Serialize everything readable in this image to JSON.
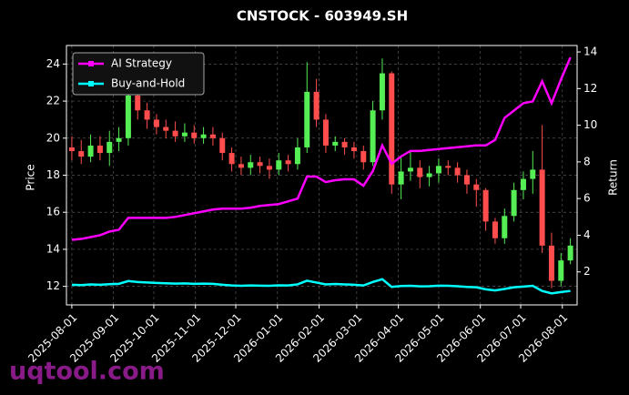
{
  "chart_data": {
    "type": "candlestick_returns",
    "title": "CNSTOCK - 603949.SH",
    "ylabel": "Price",
    "y2label": "Return",
    "watermark": "uqtool.com",
    "xlim": [
      "2025-07-28",
      "2026-08-12"
    ],
    "xticks": [
      "2025-08-01",
      "2025-09-01",
      "2025-10-01",
      "2025-11-01",
      "2025-12-01",
      "2026-01-01",
      "2026-02-01",
      "2026-03-01",
      "2026-04-01",
      "2026-05-01",
      "2026-06-01",
      "2026-07-01",
      "2026-08-01"
    ],
    "ylim": [
      11,
      25
    ],
    "yticks": [
      12,
      14,
      16,
      18,
      20,
      22,
      24
    ],
    "y2lim": [
      0.2,
      14.35
    ],
    "y2ticks": [
      2,
      4,
      6,
      8,
      10,
      12,
      14
    ],
    "grid": true,
    "legend": "upper left",
    "up_color": "#55ee55",
    "down_color": "#ff4d4d",
    "x": [
      "2025-08-01",
      "2025-08-08",
      "2025-08-15",
      "2025-08-22",
      "2025-08-29",
      "2025-09-05",
      "2025-09-12",
      "2025-09-19",
      "2025-09-26",
      "2025-10-03",
      "2025-10-10",
      "2025-10-17",
      "2025-10-24",
      "2025-10-31",
      "2025-11-07",
      "2025-11-14",
      "2025-11-21",
      "2025-11-28",
      "2025-12-05",
      "2025-12-12",
      "2025-12-19",
      "2025-12-26",
      "2026-01-02",
      "2026-01-09",
      "2026-01-16",
      "2026-01-23",
      "2026-01-30",
      "2026-02-06",
      "2026-02-13",
      "2026-02-20",
      "2026-02-27",
      "2026-03-06",
      "2026-03-13",
      "2026-03-20",
      "2026-03-27",
      "2026-04-03",
      "2026-04-10",
      "2026-04-17",
      "2026-04-24",
      "2026-05-01",
      "2026-05-08",
      "2026-05-15",
      "2026-05-22",
      "2026-05-29",
      "2026-06-05",
      "2026-06-12",
      "2026-06-19",
      "2026-06-26",
      "2026-07-03",
      "2026-07-10",
      "2026-07-17",
      "2026-07-24",
      "2026-07-31",
      "2026-08-07"
    ],
    "open": [
      19.5,
      19.3,
      19.0,
      19.6,
      19.2,
      19.8,
      20.0,
      22.3,
      21.5,
      21.0,
      20.6,
      20.4,
      20.1,
      20.3,
      20.0,
      20.2,
      20.0,
      19.2,
      18.6,
      18.4,
      18.7,
      18.5,
      18.3,
      18.8,
      18.6,
      19.5,
      22.5,
      21.0,
      19.6,
      19.8,
      19.5,
      19.3,
      18.7,
      21.5,
      23.5,
      17.5,
      18.2,
      18.4,
      17.9,
      18.1,
      18.5,
      18.4,
      18.0,
      17.5,
      17.2,
      15.5,
      14.6,
      15.8,
      17.2,
      17.8,
      18.3,
      14.2,
      12.3,
      13.4
    ],
    "high": [
      20.1,
      19.9,
      20.2,
      20.1,
      20.4,
      20.6,
      23.0,
      22.8,
      21.9,
      21.3,
      21.0,
      20.9,
      20.8,
      20.7,
      20.6,
      20.6,
      20.3,
      19.5,
      19.0,
      19.1,
      19.0,
      18.9,
      19.2,
      19.1,
      20.0,
      24.1,
      23.2,
      21.3,
      20.1,
      20.0,
      19.8,
      19.6,
      22.0,
      24.3,
      23.6,
      19.0,
      19.3,
      18.8,
      18.5,
      18.9,
      18.8,
      18.7,
      18.3,
      17.8,
      17.3,
      15.7,
      16.2,
      17.6,
      18.2,
      19.3,
      20.7,
      14.9,
      13.8,
      14.6
    ],
    "low": [
      18.8,
      18.6,
      18.7,
      18.8,
      18.5,
      19.3,
      19.6,
      21.0,
      20.5,
      20.2,
      20.0,
      19.8,
      19.8,
      19.7,
      19.7,
      19.6,
      18.8,
      18.2,
      18.0,
      18.0,
      18.1,
      17.8,
      18.0,
      18.2,
      18.3,
      19.2,
      20.6,
      19.2,
      19.3,
      19.1,
      18.9,
      18.3,
      18.5,
      21.0,
      17.0,
      16.7,
      17.7,
      17.3,
      17.4,
      17.6,
      18.0,
      17.6,
      17.0,
      16.3,
      15.0,
      14.3,
      14.3,
      15.5,
      16.7,
      17.0,
      13.8,
      11.9,
      12.0,
      13.2
    ],
    "close": [
      19.3,
      19.0,
      19.6,
      19.2,
      19.8,
      20.0,
      22.3,
      21.5,
      21.0,
      20.6,
      20.4,
      20.1,
      20.3,
      20.0,
      20.2,
      20.0,
      19.2,
      18.6,
      18.4,
      18.7,
      18.5,
      18.3,
      18.8,
      18.6,
      19.5,
      22.5,
      21.0,
      19.6,
      19.8,
      19.5,
      19.3,
      18.7,
      21.5,
      23.5,
      17.5,
      18.2,
      18.4,
      17.9,
      18.1,
      18.5,
      18.4,
      18.0,
      17.5,
      17.2,
      15.5,
      14.6,
      15.8,
      17.2,
      17.8,
      18.3,
      14.2,
      12.3,
      13.4,
      14.2
    ],
    "series": [
      {
        "name": "AI Strategy",
        "color": "#ff00ff",
        "axis": "y2",
        "values": [
          3.75,
          3.8,
          3.9,
          4.0,
          4.2,
          4.3,
          4.95,
          4.95,
          4.95,
          4.95,
          4.95,
          5.0,
          5.1,
          5.2,
          5.3,
          5.4,
          5.45,
          5.45,
          5.45,
          5.5,
          5.6,
          5.65,
          5.7,
          5.85,
          6.0,
          7.2,
          7.2,
          6.9,
          7.0,
          7.05,
          7.05,
          6.7,
          7.5,
          8.9,
          7.9,
          8.3,
          8.6,
          8.6,
          8.65,
          8.7,
          8.75,
          8.8,
          8.85,
          8.9,
          8.9,
          9.2,
          10.4,
          10.8,
          11.2,
          11.3,
          12.4,
          11.2,
          12.5,
          13.7
        ]
      },
      {
        "name": "Buy-and-Hold",
        "color": "#00ffff",
        "axis": "y2",
        "values": [
          1.3,
          1.28,
          1.32,
          1.3,
          1.33,
          1.35,
          1.5,
          1.45,
          1.42,
          1.4,
          1.38,
          1.36,
          1.37,
          1.35,
          1.36,
          1.35,
          1.3,
          1.26,
          1.24,
          1.26,
          1.25,
          1.24,
          1.27,
          1.26,
          1.32,
          1.52,
          1.42,
          1.32,
          1.34,
          1.32,
          1.3,
          1.26,
          1.45,
          1.6,
          1.18,
          1.23,
          1.24,
          1.21,
          1.22,
          1.25,
          1.24,
          1.22,
          1.18,
          1.16,
          1.05,
          0.99,
          1.07,
          1.16,
          1.2,
          1.24,
          0.96,
          0.83,
          0.9,
          0.96
        ]
      }
    ]
  }
}
